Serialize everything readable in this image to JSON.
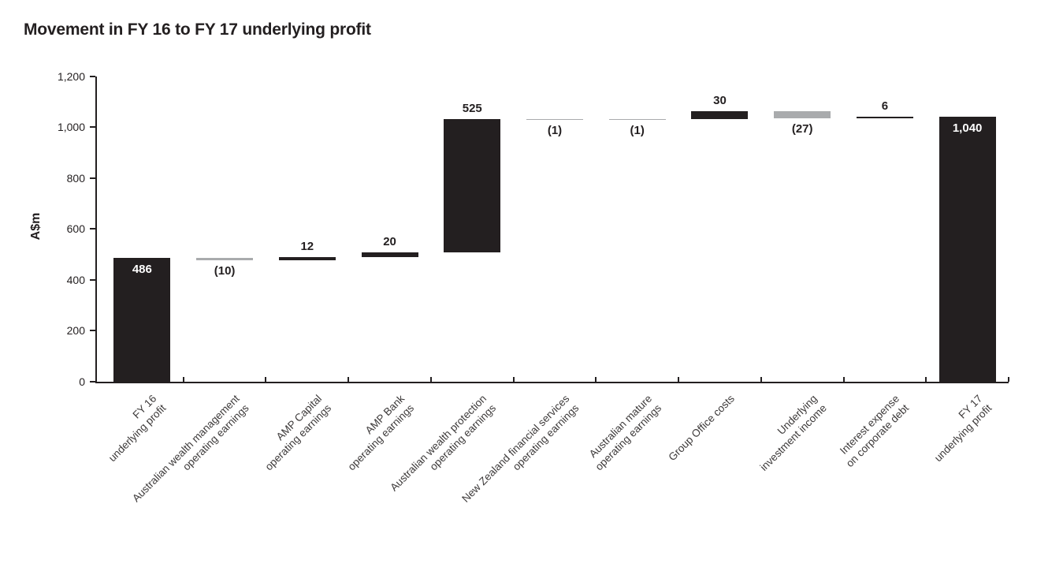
{
  "title": "Movement in FY 16 to FY 17 underlying profit",
  "chart_data": {
    "type": "bar",
    "subtype": "waterfall",
    "title": "Movement in FY 16 to FY 17 underlying profit",
    "xlabel": "",
    "ylabel": "A$m",
    "ylim": [
      0,
      1200
    ],
    "grid": false,
    "legend": "none",
    "colors": {
      "bar_positive": "#231f20",
      "bar_negative": "#a9abad",
      "axis": "#231f20",
      "inside_label": "#ffffff",
      "outside_label": "#231f20",
      "category_label": "#3d3a3a"
    },
    "yticks": [
      {
        "value": 0,
        "label": "0"
      },
      {
        "value": 200,
        "label": "200"
      },
      {
        "value": 400,
        "label": "400"
      },
      {
        "value": 600,
        "label": "600"
      },
      {
        "value": 800,
        "label": "800"
      },
      {
        "value": 1000,
        "label": "1,000"
      },
      {
        "value": 1200,
        "label": "1,200"
      }
    ],
    "bars": [
      {
        "name": "fy16-underlying-profit",
        "label_lines": [
          "FY 16",
          "underlying profit"
        ],
        "value": 486,
        "kind": "total",
        "display": "486",
        "label_pos": "inside"
      },
      {
        "name": "australian-wealth-management",
        "label_lines": [
          "Australian wealth management",
          "operating earnings"
        ],
        "value": -10,
        "kind": "delta",
        "display": "(10)",
        "label_pos": "below"
      },
      {
        "name": "amp-capital",
        "label_lines": [
          "AMP Capital",
          "operating earnings"
        ],
        "value": 12,
        "kind": "delta",
        "display": "12",
        "label_pos": "above"
      },
      {
        "name": "amp-bank",
        "label_lines": [
          "AMP Bank",
          "operating earnings"
        ],
        "value": 20,
        "kind": "delta",
        "display": "20",
        "label_pos": "above"
      },
      {
        "name": "australian-wealth-protection",
        "label_lines": [
          "Australian wealth protection",
          "operating earnings"
        ],
        "value": 525,
        "kind": "delta",
        "display": "525",
        "label_pos": "above"
      },
      {
        "name": "new-zealand-financial-services",
        "label_lines": [
          "New Zealand financial services",
          "operating earnings"
        ],
        "value": -1,
        "kind": "delta",
        "display": "(1)",
        "label_pos": "below"
      },
      {
        "name": "australian-mature",
        "label_lines": [
          "Australian mature",
          "operating earnings"
        ],
        "value": -1,
        "kind": "delta",
        "display": "(1)",
        "label_pos": "below"
      },
      {
        "name": "group-office-costs",
        "label_lines": [
          "Group Office costs"
        ],
        "value": 30,
        "kind": "delta",
        "display": "30",
        "label_pos": "above"
      },
      {
        "name": "underlying-investment-income",
        "label_lines": [
          "Underlying",
          "investment income"
        ],
        "value": -27,
        "kind": "delta",
        "display": "(27)",
        "label_pos": "below"
      },
      {
        "name": "interest-expense",
        "label_lines": [
          "Interest expense",
          "on corporate debt"
        ],
        "value": 6,
        "kind": "delta",
        "display": "6",
        "label_pos": "above"
      },
      {
        "name": "fy17-underlying-profit",
        "label_lines": [
          "FY 17",
          "underlying profit"
        ],
        "value": 1040,
        "kind": "total",
        "display": "1,040",
        "label_pos": "inside"
      }
    ]
  }
}
